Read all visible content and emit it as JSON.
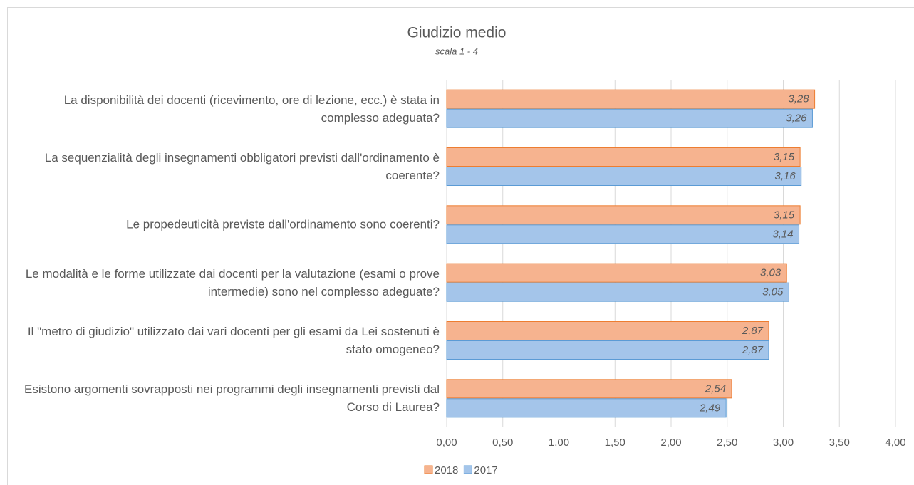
{
  "chart_data": {
    "type": "barh",
    "title": "Giudizio medio",
    "subtitle": "scala 1 - 4",
    "categories": [
      "La disponibilità dei docenti (ricevimento, ore di lezione, ecc.) è stata in complesso adeguata?",
      "La sequenzialità degli insegnamenti obbligatori previsti dall'ordinamento è coerente?",
      "Le propedeuticità previste dall'ordinamento sono coerenti?",
      "Le modalità e le forme utilizzate dai docenti per la valutazione (esami o prove intermedie) sono nel complesso adeguate?",
      "Il \"metro di giudizio\" utilizzato dai vari docenti per gli esami da Lei sostenuti è stato omogeneo?",
      "Esistono argomenti sovrapposti nei programmi degli insegnamenti previsti dal Corso di Laurea?"
    ],
    "series": [
      {
        "name": "2018",
        "color": "#f6b38f",
        "edgecolor": "#ed7d31",
        "values": [
          3.28,
          3.15,
          3.15,
          3.03,
          2.87,
          2.54
        ],
        "value_labels": [
          "3,28",
          "3,15",
          "3,15",
          "3,03",
          "2,87",
          "2,54"
        ]
      },
      {
        "name": "2017",
        "color": "#a4c5ea",
        "edgecolor": "#5b9bd5",
        "values": [
          3.26,
          3.16,
          3.14,
          3.05,
          2.87,
          2.49
        ],
        "value_labels": [
          "3,26",
          "3,16",
          "3,14",
          "3,05",
          "2,87",
          "2,49"
        ]
      }
    ],
    "xlim": [
      0,
      4
    ],
    "xticks": [
      {
        "value": 0,
        "label": "0,00"
      },
      {
        "value": 0.5,
        "label": "0,50"
      },
      {
        "value": 1,
        "label": "1,00"
      },
      {
        "value": 1.5,
        "label": "1,50"
      },
      {
        "value": 2,
        "label": "2,00"
      },
      {
        "value": 2.5,
        "label": "2,50"
      },
      {
        "value": 3,
        "label": "3,00"
      },
      {
        "value": 3.5,
        "label": "3,50"
      },
      {
        "value": 4,
        "label": "4,00"
      }
    ],
    "grid": true,
    "legend": "bottom"
  }
}
